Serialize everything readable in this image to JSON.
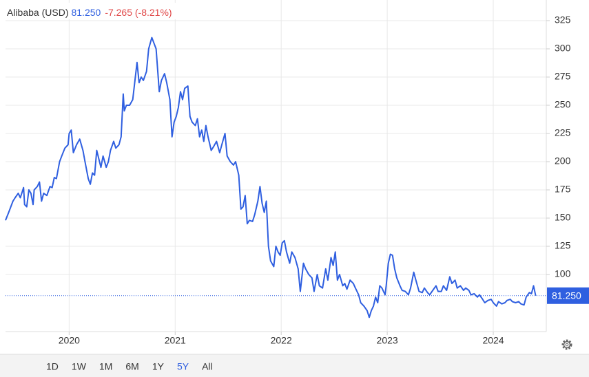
{
  "chart_data": {
    "type": "line",
    "series": [
      {
        "name": "Alibaba (USD)",
        "color": "#2f5fe0",
        "x": [
          2019.4,
          2019.43,
          2019.47,
          2019.49,
          2019.52,
          2019.54,
          2019.57,
          2019.58,
          2019.6,
          2019.62,
          2019.64,
          2019.66,
          2019.67,
          2019.7,
          2019.72,
          2019.74,
          2019.76,
          2019.79,
          2019.82,
          2019.84,
          2019.86,
          2019.88,
          2019.91,
          2019.93,
          2019.96,
          2019.99,
          2020.0,
          2020.02,
          2020.04,
          2020.07,
          2020.1,
          2020.13,
          2020.15,
          2020.18,
          2020.2,
          2020.22,
          2020.24,
          2020.26,
          2020.3,
          2020.32,
          2020.35,
          2020.37,
          2020.39,
          2020.42,
          2020.44,
          2020.47,
          2020.49,
          2020.51,
          2020.52,
          2020.54,
          2020.57,
          2020.6,
          2020.64,
          2020.66,
          2020.68,
          2020.7,
          2020.73,
          2020.75,
          2020.78,
          2020.8,
          2020.82,
          2020.85,
          2020.87,
          2020.9,
          2020.92,
          2020.95,
          2020.97,
          2020.99,
          2021.01,
          2021.03,
          2021.05,
          2021.07,
          2021.09,
          2021.12,
          2021.14,
          2021.16,
          2021.19,
          2021.21,
          2021.23,
          2021.25,
          2021.27,
          2021.29,
          2021.31,
          2021.34,
          2021.36,
          2021.39,
          2021.42,
          2021.44,
          2021.47,
          2021.49,
          2021.52,
          2021.55,
          2021.57,
          2021.6,
          2021.62,
          2021.64,
          2021.66,
          2021.68,
          2021.7,
          2021.73,
          2021.75,
          2021.78,
          2021.8,
          2021.82,
          2021.84,
          2021.86,
          2021.88,
          2021.9,
          2021.93,
          2021.95,
          2021.97,
          2021.99,
          2022.01,
          2022.03,
          2022.05,
          2022.08,
          2022.1,
          2022.13,
          2022.16,
          2022.18,
          2022.21,
          2022.23,
          2022.26,
          2022.29,
          2022.31,
          2022.34,
          2022.36,
          2022.39,
          2022.42,
          2022.44,
          2022.47,
          2022.49,
          2022.51,
          2022.53,
          2022.55,
          2022.58,
          2022.6,
          2022.62,
          2022.65,
          2022.68,
          2022.7,
          2022.73,
          2022.75,
          2022.78,
          2022.81,
          2022.83,
          2022.85,
          2022.87,
          2022.89,
          2022.91,
          2022.93,
          2022.95,
          2022.98,
          2022.99,
          2023.01,
          2023.03,
          2023.05,
          2023.07,
          2023.09,
          2023.12,
          2023.14,
          2023.17,
          2023.2,
          2023.22,
          2023.25,
          2023.27,
          2023.3,
          2023.33,
          2023.35,
          2023.38,
          2023.4,
          2023.43,
          2023.46,
          2023.48,
          2023.51,
          2023.53,
          2023.56,
          2023.59,
          2023.61,
          2023.64,
          2023.66,
          2023.69,
          2023.72,
          2023.74,
          2023.77,
          2023.79,
          2023.82,
          2023.85,
          2023.87,
          2023.9,
          2023.92,
          2023.95,
          2023.98,
          2024.0,
          2024.03,
          2024.05,
          2024.08,
          2024.11,
          2024.13,
          2024.16,
          2024.18,
          2024.21,
          2024.24,
          2024.26,
          2024.29,
          2024.31,
          2024.34,
          2024.36,
          2024.38,
          2024.4
        ],
        "values": [
          148,
          155,
          165,
          168,
          172,
          168,
          177,
          162,
          160,
          175,
          172,
          162,
          175,
          178,
          182,
          165,
          172,
          170,
          178,
          177,
          186,
          185,
          200,
          205,
          212,
          215,
          225,
          228,
          208,
          215,
          220,
          210,
          200,
          185,
          180,
          190,
          188,
          210,
          195,
          205,
          195,
          200,
          210,
          218,
          212,
          215,
          222,
          260,
          245,
          250,
          250,
          255,
          288,
          270,
          275,
          272,
          280,
          300,
          310,
          305,
          300,
          262,
          272,
          278,
          270,
          255,
          222,
          235,
          240,
          248,
          262,
          255,
          265,
          267,
          240,
          235,
          232,
          238,
          222,
          228,
          218,
          232,
          222,
          210,
          213,
          218,
          208,
          215,
          225,
          205,
          200,
          197,
          200,
          188,
          158,
          160,
          170,
          145,
          148,
          147,
          153,
          165,
          178,
          163,
          155,
          165,
          125,
          112,
          107,
          125,
          120,
          117,
          128,
          130,
          120,
          110,
          120,
          115,
          105,
          85,
          110,
          105,
          100,
          97,
          85,
          100,
          90,
          88,
          105,
          95,
          115,
          108,
          120,
          95,
          100,
          90,
          92,
          87,
          95,
          92,
          88,
          82,
          75,
          72,
          68,
          62,
          68,
          72,
          80,
          75,
          90,
          88,
          82,
          90,
          110,
          118,
          117,
          105,
          97,
          90,
          86,
          85,
          82,
          88,
          102,
          95,
          85,
          84,
          88,
          84,
          82,
          86,
          90,
          85,
          85,
          90,
          86,
          98,
          92,
          95,
          88,
          90,
          86,
          88,
          86,
          82,
          83,
          80,
          82,
          78,
          75,
          77,
          78,
          75,
          72,
          76,
          74,
          75,
          77,
          78,
          76,
          75,
          76,
          74,
          73,
          80,
          84,
          83,
          90,
          81.25
        ]
      }
    ],
    "last_price": {
      "value": 81.25,
      "label": "81.250"
    },
    "change": "-7.265 (-8.21%)",
    "xlim": [
      2019.4,
      2024.5
    ],
    "xticks": [
      2020,
      2021,
      2022,
      2023,
      2024
    ],
    "ylim": [
      49.4,
      343.3
    ],
    "yticks": [
      100,
      125,
      150,
      175,
      200,
      225,
      250,
      275,
      300,
      325
    ],
    "grid": true,
    "ranges": [
      "1D",
      "1W",
      "1M",
      "6M",
      "1Y",
      "5Y",
      "All"
    ],
    "selected_range": 5
  }
}
